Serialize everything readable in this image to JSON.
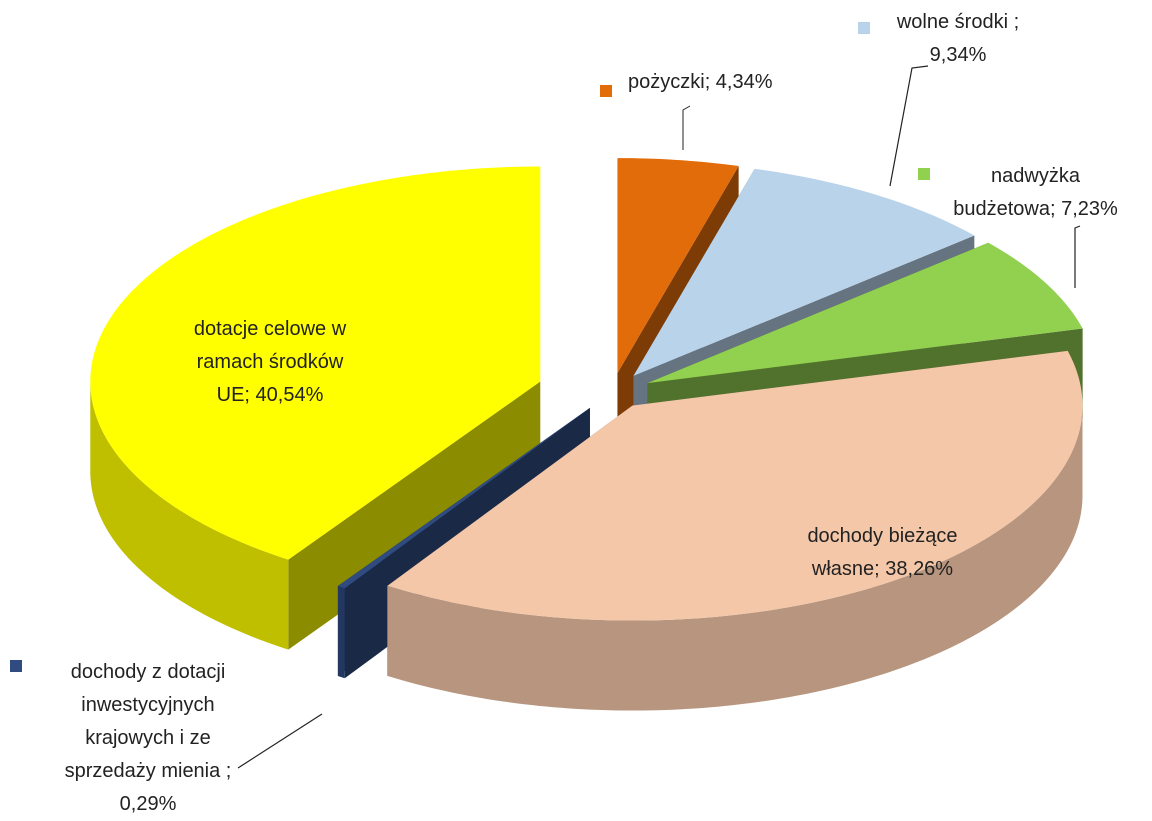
{
  "chart_data": {
    "type": "pie",
    "values": [
      4.34,
      9.34,
      7.23,
      38.26,
      0.29,
      40.54
    ],
    "value_labels": [
      "pożyczki; 4,34%",
      "wolne środki ; 9,34%",
      "nadwyżka budżetowa; 7,23%",
      "dochody bieżące własne; 38,26%",
      "dochody z dotacji inwestycyjnych krajowych i ze sprzedaży mienia ; 0,29%",
      "dotacje celowe w ramach środków UE; 40,54%"
    ],
    "colors": [
      "#e36c0a",
      "#b9d3ea",
      "#92d050",
      "#f4c7a8",
      "#2f4b80",
      "#ffff00"
    ]
  }
}
